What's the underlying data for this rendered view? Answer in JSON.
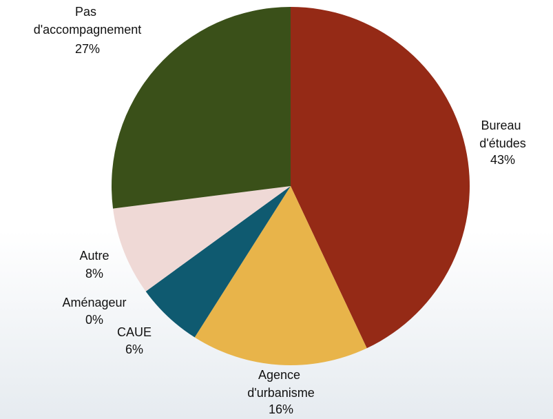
{
  "chart_data": {
    "type": "pie",
    "categories": [
      "Bureau d'études",
      "Agence d'urbanisme",
      "CAUE",
      "Aménageur",
      "Autre",
      "Pas d'accompagnement"
    ],
    "values": [
      43,
      16,
      6,
      0,
      8,
      27
    ],
    "value_labels": [
      "43%",
      "16%",
      "6%",
      "0%",
      "8%",
      "27%"
    ],
    "colors": [
      "#952a16",
      "#e8b44a",
      "#0f5a70",
      "#7f7f7f",
      "#efd9d6",
      "#3a5019"
    ]
  }
}
